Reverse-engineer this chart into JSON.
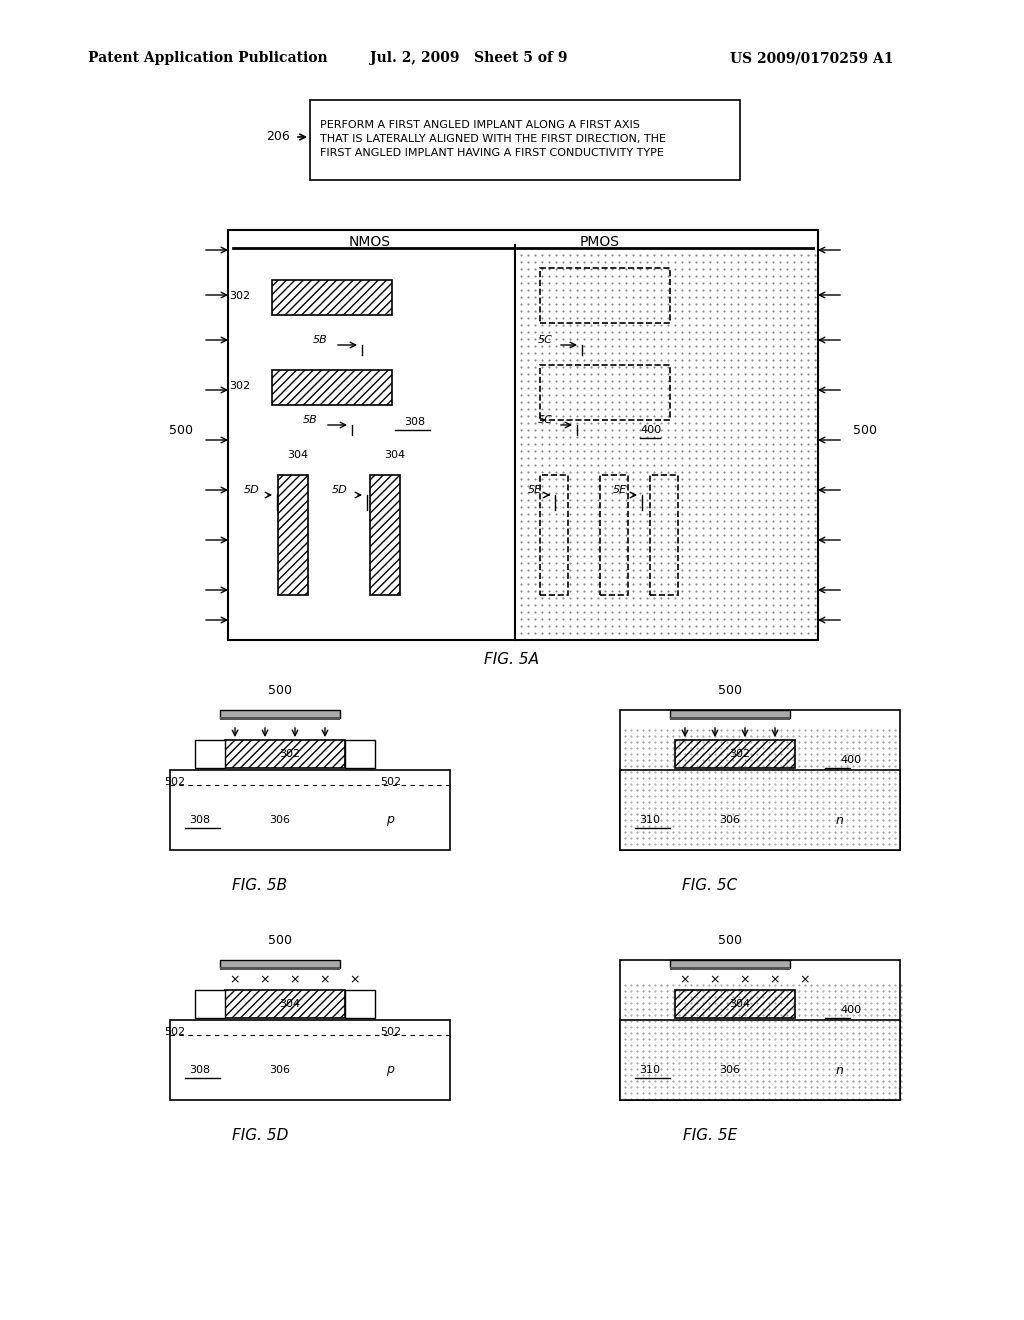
{
  "bg_color": "#ffffff",
  "header_text1": "Patent Application Publication",
  "header_text2": "Jul. 2, 2009   Sheet 5 of 9",
  "header_text3": "US 2009/0170259 A1",
  "flowbox_label": "206",
  "flowbox_text": "PERFORM A FIRST ANGLED IMPLANT ALONG A FIRST AXIS\nTHAT IS LATERALLY ALIGNED WITH THE FIRST DIRECTION, THE\nFIRST ANGLED IMPLANT HAVING A FIRST CONDUCTIVITY TYPE",
  "fig5a_label": "FIG. 5A",
  "fig5b_label": "FIG. 5B",
  "fig5c_label": "FIG. 5C",
  "fig5d_label": "FIG. 5D",
  "fig5e_label": "FIG. 5E"
}
